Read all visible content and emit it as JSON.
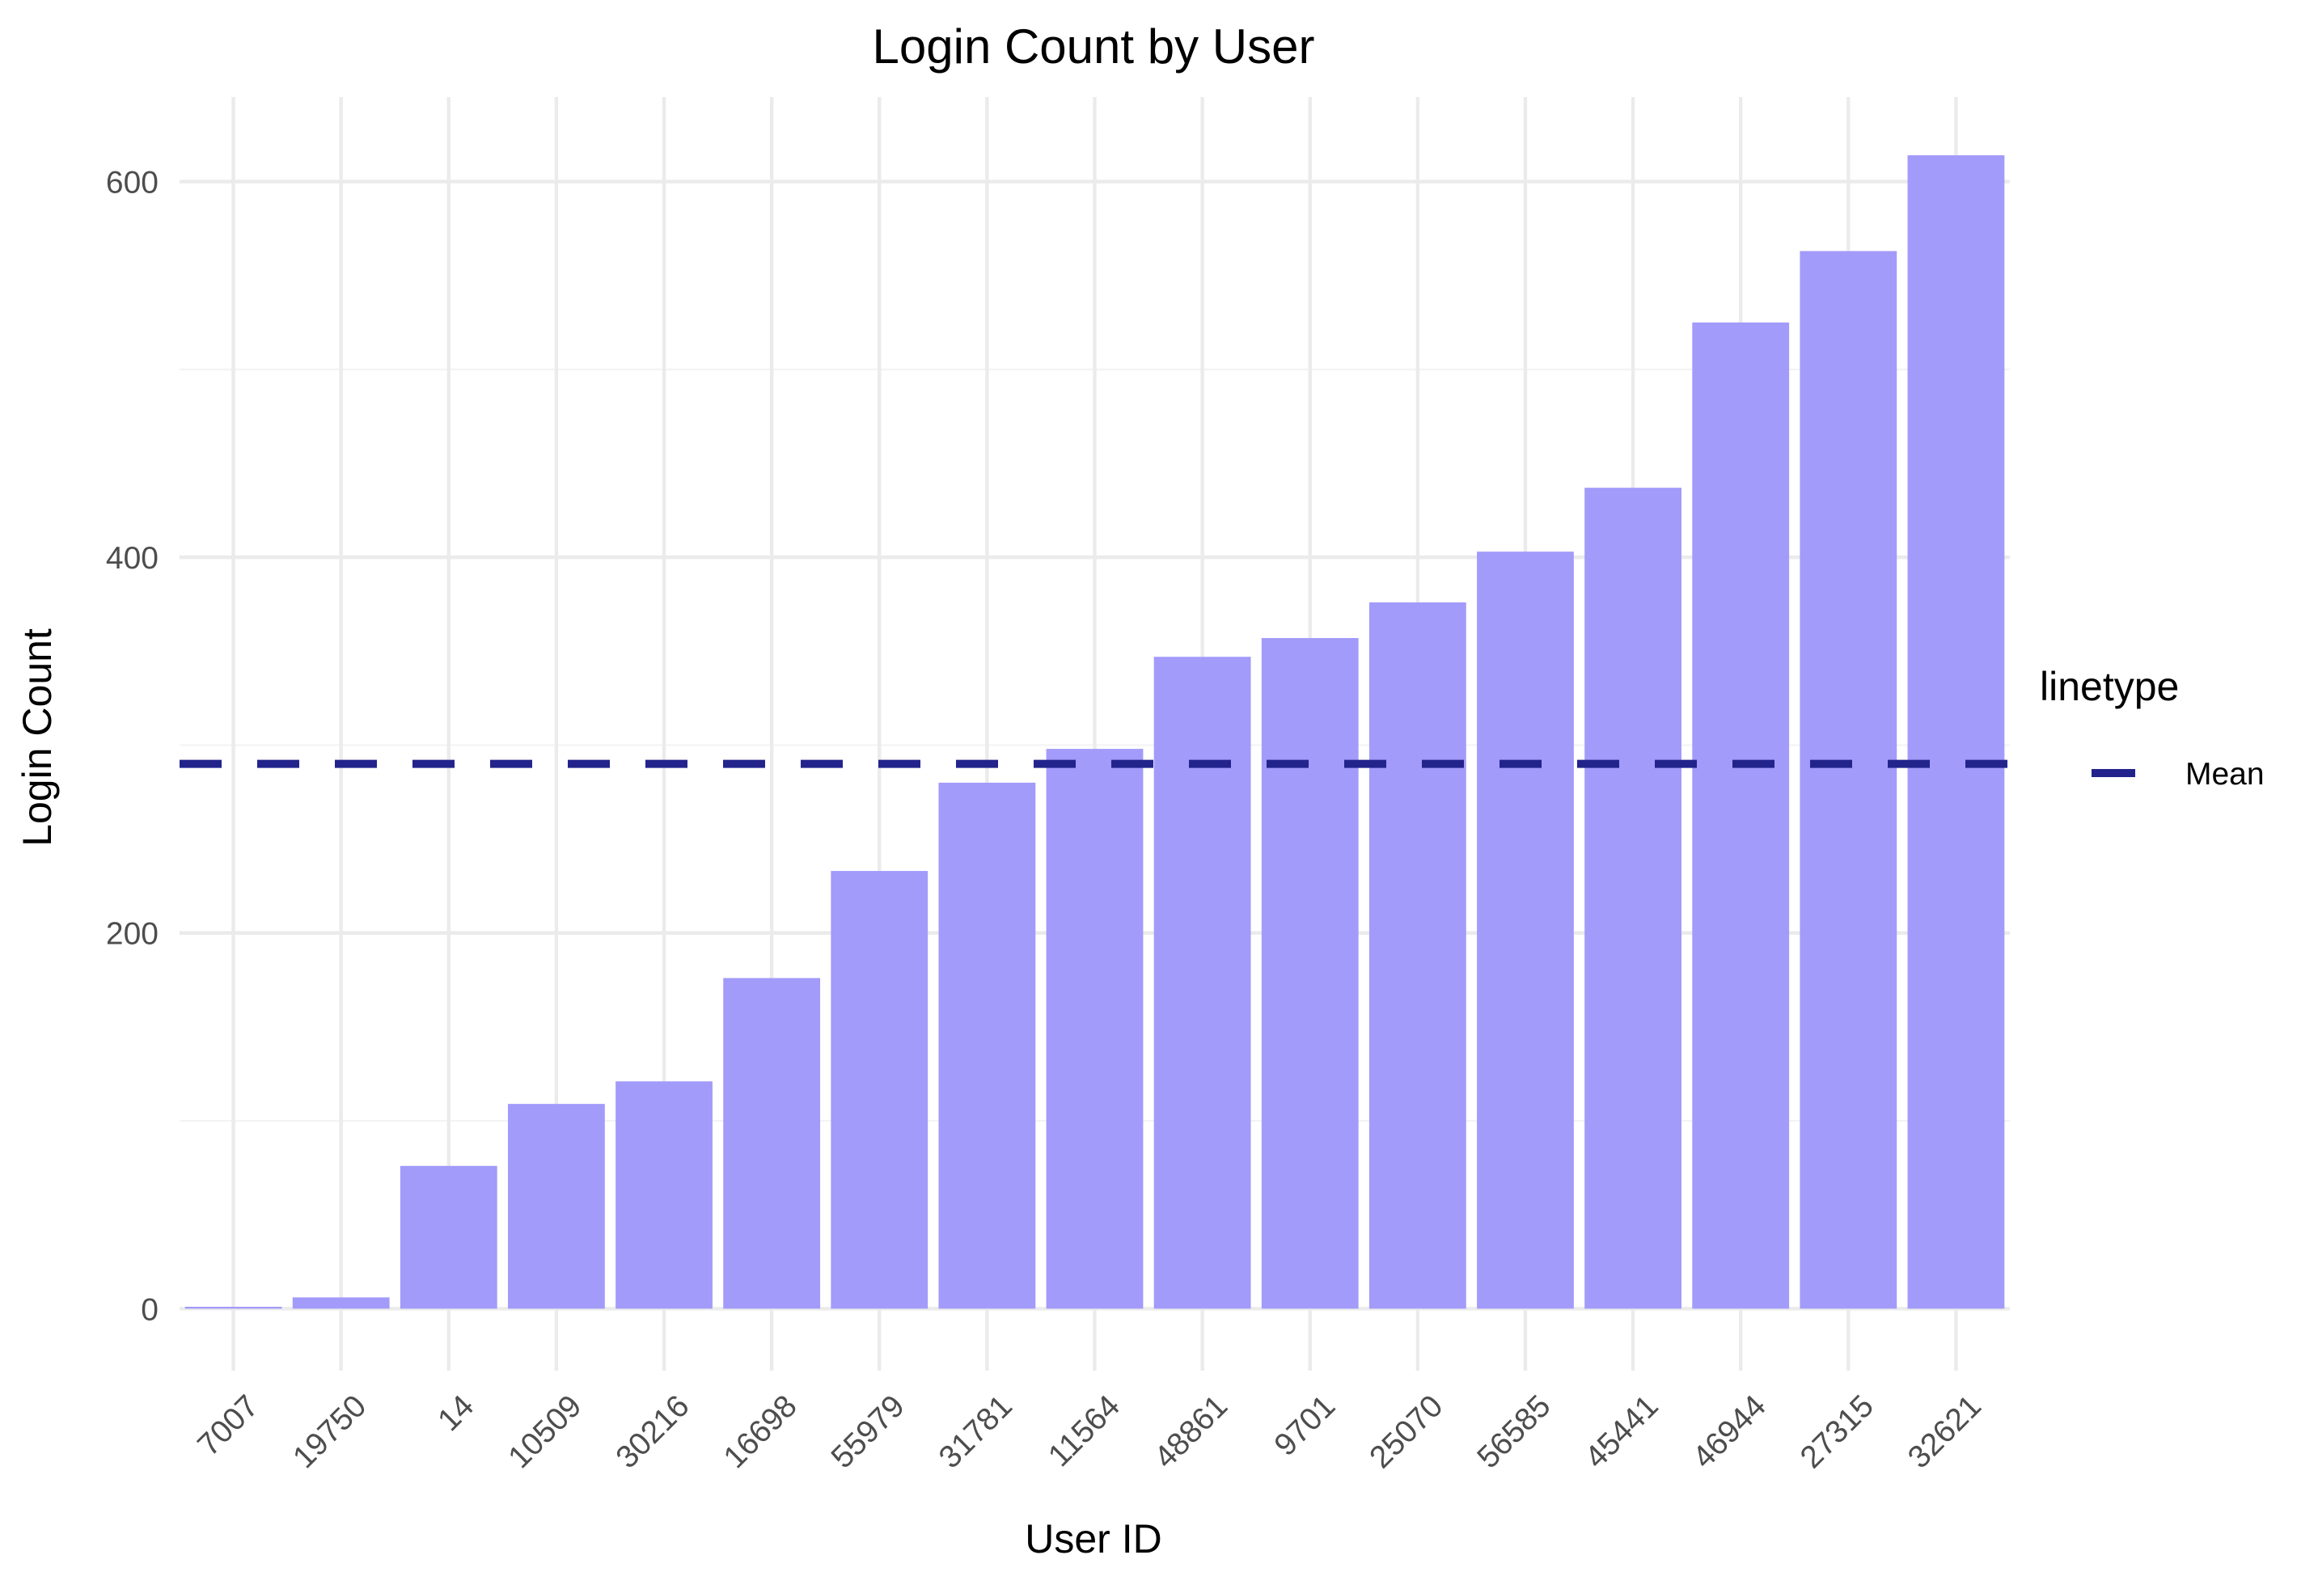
{
  "chart_data": {
    "type": "bar",
    "title": "Login Count by User",
    "xlabel": "User ID",
    "ylabel": "Login Count",
    "categories": [
      "7007",
      "19750",
      "14",
      "10509",
      "30216",
      "16698",
      "55979",
      "31781",
      "11564",
      "48861",
      "9701",
      "25070",
      "56585",
      "45441",
      "46944",
      "27315",
      "32621"
    ],
    "values": [
      1,
      6,
      76,
      109,
      121,
      176,
      233,
      280,
      298,
      347,
      357,
      376,
      403,
      437,
      525,
      563,
      614
    ],
    "ylim": [
      -33,
      645
    ],
    "yticks": [
      0,
      200,
      400,
      600
    ],
    "mean": 290,
    "grid": true,
    "bar_color": "#a29bfa",
    "mean_line_color": "#23238c",
    "legend": {
      "title": "linetype",
      "placement": "right",
      "items": [
        {
          "label": "Mean",
          "style": "dashed"
        }
      ]
    }
  }
}
